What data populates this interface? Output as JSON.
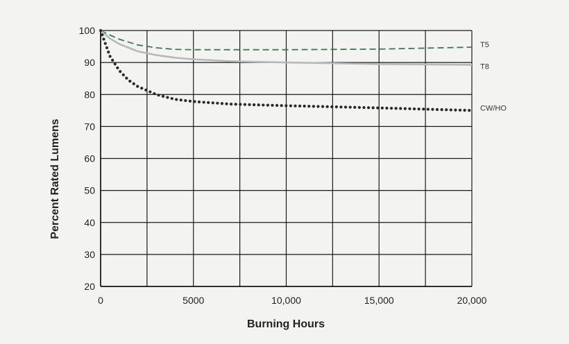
{
  "chart_data": {
    "type": "line",
    "title": "",
    "xlabel": "Burning Hours",
    "ylabel": "Percent Rated Lumens",
    "xlim": [
      0,
      20000
    ],
    "ylim": [
      20,
      100
    ],
    "x_ticks": [
      0,
      5000,
      10000,
      15000,
      20000
    ],
    "x_tick_labels": [
      "0",
      "5000",
      "10,000",
      "15,000",
      "20,000"
    ],
    "y_ticks": [
      20,
      30,
      40,
      50,
      60,
      70,
      80,
      90,
      100
    ],
    "y_tick_labels": [
      "20",
      "30",
      "40",
      "50",
      "60",
      "70",
      "80",
      "90",
      "100"
    ],
    "grid": true,
    "legend": "labels at right end of lines",
    "series": [
      {
        "name": "T5",
        "style": "dashed",
        "color": "#3a7a55",
        "x": [
          0,
          500,
          1000,
          2000,
          3000,
          4000,
          5000,
          7000,
          10000,
          15000,
          20000
        ],
        "y": [
          100,
          98.6,
          97.3,
          95.5,
          94.6,
          94.1,
          94,
          94,
          94,
          94.2,
          94.8
        ]
      },
      {
        "name": "T8",
        "style": "solid",
        "color": "#b8b8b8",
        "x": [
          0,
          500,
          1000,
          2000,
          3000,
          4000,
          5000,
          7000,
          10000,
          15000,
          20000
        ],
        "y": [
          100,
          97.5,
          95.8,
          93.5,
          92.3,
          91.5,
          91,
          90.4,
          90,
          89.5,
          89.3
        ]
      },
      {
        "name": "CW/HO",
        "style": "dotted",
        "color": "#2a2a2a",
        "x": [
          0,
          500,
          1000,
          1500,
          2000,
          3000,
          4000,
          5000,
          7000,
          10000,
          15000,
          20000
        ],
        "y": [
          100,
          92,
          87.5,
          84.5,
          82.5,
          80,
          78.5,
          77.8,
          77,
          76.5,
          75.8,
          75
        ]
      }
    ]
  }
}
